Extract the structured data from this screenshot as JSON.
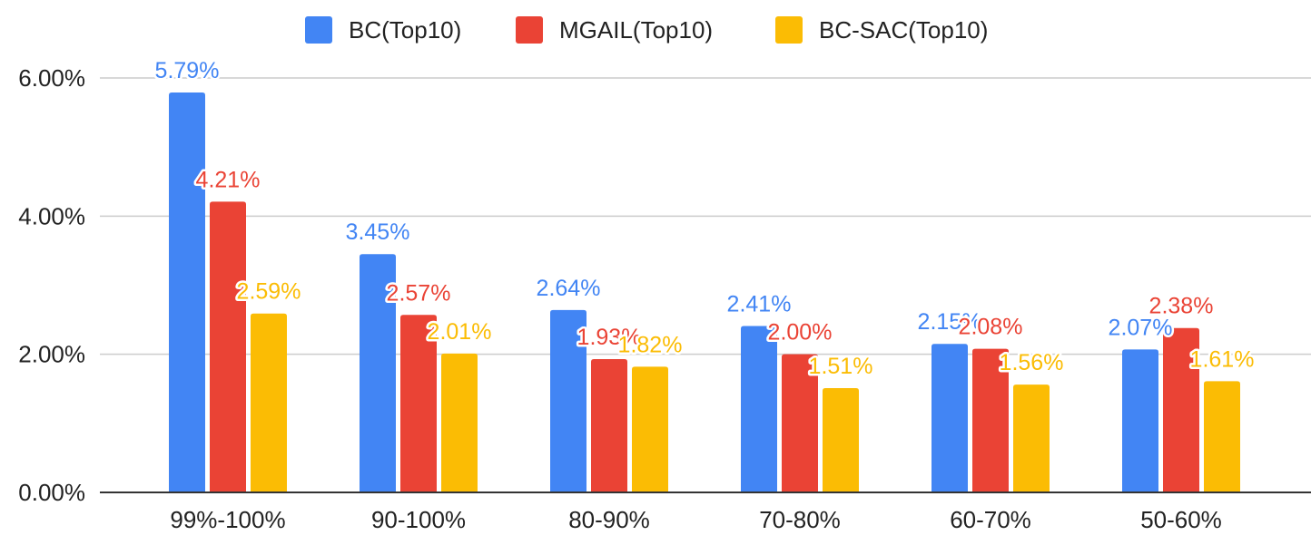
{
  "chart_data": {
    "type": "bar",
    "categories": [
      "99%-100%",
      "90-100%",
      "80-90%",
      "70-80%",
      "60-70%",
      "50-60%"
    ],
    "series": [
      {
        "name": "BC(Top10)",
        "color": "#4285f4",
        "values": [
          5.79,
          3.45,
          2.64,
          2.41,
          2.15,
          2.07
        ],
        "labels": [
          "5.79%",
          "3.45%",
          "2.64%",
          "2.41%",
          "2.15%",
          "2.07%"
        ]
      },
      {
        "name": "MGAIL(Top10)",
        "color": "#ea4335",
        "values": [
          4.21,
          2.57,
          1.93,
          2.0,
          2.08,
          2.38
        ],
        "labels": [
          "4.21%",
          "2.57%",
          "1.93%",
          "2.00%",
          "2.08%",
          "2.38%"
        ]
      },
      {
        "name": "BC-SAC(Top10)",
        "color": "#fbbc04",
        "values": [
          2.59,
          2.01,
          1.82,
          1.51,
          1.56,
          1.61
        ],
        "labels": [
          "2.59%",
          "2.01%",
          "1.82%",
          "1.51%",
          "1.56%",
          "1.61%"
        ]
      }
    ],
    "y_ticks": [
      0,
      2,
      4,
      6
    ],
    "y_tick_labels": [
      "0.00%",
      "2.00%",
      "4.00%",
      "6.00%"
    ],
    "ylim": [
      0,
      6.0
    ],
    "title": "",
    "xlabel": "",
    "ylabel": "",
    "grid": true,
    "legend_position": "top-center"
  }
}
